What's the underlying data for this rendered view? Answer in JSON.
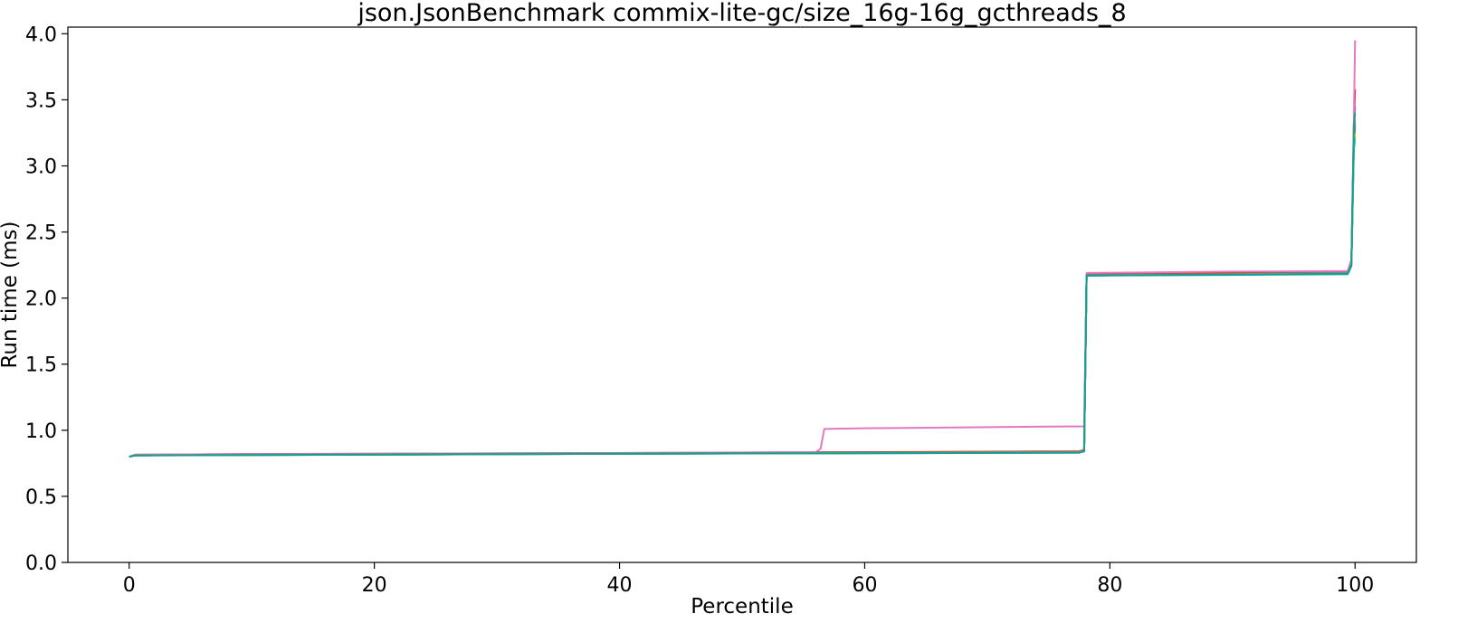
{
  "chart_data": {
    "type": "line",
    "title": "json.JsonBenchmark commix-lite-gc/size_16g-16g_gcthreads_8",
    "xlabel": "Percentile",
    "ylabel": "Run time (ms)",
    "xlim": [
      -5,
      105
    ],
    "ylim": [
      0.0,
      4.05
    ],
    "xticks": [
      0,
      20,
      40,
      60,
      80,
      100
    ],
    "xtick_labels": [
      "0",
      "20",
      "40",
      "60",
      "80",
      "100"
    ],
    "yticks": [
      0.0,
      0.5,
      1.0,
      1.5,
      2.0,
      2.5,
      3.0,
      3.5,
      4.0
    ],
    "ytick_labels": [
      "0.0",
      "0.5",
      "1.0",
      "1.5",
      "2.0",
      "2.5",
      "3.0",
      "3.5",
      "4.0"
    ],
    "grid": false,
    "legend": false,
    "series": [
      {
        "color": "#1f77b4",
        "points": [
          [
            0,
            0.8
          ],
          [
            0.5,
            0.81
          ],
          [
            10,
            0.815
          ],
          [
            40,
            0.825
          ],
          [
            77.5,
            0.835
          ],
          [
            77.9,
            0.845
          ],
          [
            78.1,
            2.17
          ],
          [
            90,
            2.18
          ],
          [
            99.4,
            2.19
          ],
          [
            99.7,
            2.26
          ],
          [
            99.9,
            3.2
          ],
          [
            100,
            3.28
          ]
        ]
      },
      {
        "color": "#ff7f0e",
        "points": [
          [
            0,
            0.8
          ],
          [
            0.5,
            0.81
          ],
          [
            10,
            0.815
          ],
          [
            40,
            0.825
          ],
          [
            77.5,
            0.84
          ],
          [
            77.9,
            0.85
          ],
          [
            78.1,
            2.18
          ],
          [
            90,
            2.185
          ],
          [
            99.4,
            2.19
          ],
          [
            99.7,
            2.27
          ],
          [
            99.9,
            3.22
          ],
          [
            100,
            3.35
          ]
        ]
      },
      {
        "color": "#2ca02c",
        "points": [
          [
            0,
            0.8
          ],
          [
            0.5,
            0.81
          ],
          [
            10,
            0.812
          ],
          [
            40,
            0.822
          ],
          [
            77.5,
            0.832
          ],
          [
            77.9,
            0.84
          ],
          [
            78.1,
            2.17
          ],
          [
            90,
            2.18
          ],
          [
            99.4,
            2.185
          ],
          [
            99.7,
            2.25
          ],
          [
            99.9,
            3.15
          ],
          [
            100,
            3.22
          ]
        ]
      },
      {
        "color": "#d62728",
        "points": [
          [
            0,
            0.8
          ],
          [
            0.5,
            0.815
          ],
          [
            10,
            0.82
          ],
          [
            40,
            0.828
          ],
          [
            77.5,
            0.84
          ],
          [
            77.9,
            0.85
          ],
          [
            78.1,
            2.18
          ],
          [
            90,
            2.19
          ],
          [
            99.4,
            2.195
          ],
          [
            99.7,
            2.28
          ],
          [
            99.9,
            3.3
          ],
          [
            100,
            3.58
          ]
        ]
      },
      {
        "color": "#9467bd",
        "points": [
          [
            0,
            0.8
          ],
          [
            0.5,
            0.81
          ],
          [
            10,
            0.815
          ],
          [
            40,
            0.825
          ],
          [
            77.5,
            0.835
          ],
          [
            77.9,
            0.845
          ],
          [
            78.1,
            2.175
          ],
          [
            90,
            2.18
          ],
          [
            99.4,
            2.19
          ],
          [
            99.7,
            2.26
          ],
          [
            99.9,
            3.25
          ],
          [
            100,
            3.45
          ]
        ]
      },
      {
        "color": "#8c564b",
        "points": [
          [
            0,
            0.8
          ],
          [
            0.5,
            0.81
          ],
          [
            10,
            0.815
          ],
          [
            40,
            0.825
          ],
          [
            77.5,
            0.835
          ],
          [
            77.9,
            0.845
          ],
          [
            78.1,
            2.175
          ],
          [
            90,
            2.18
          ],
          [
            99.4,
            2.19
          ],
          [
            99.7,
            2.26
          ],
          [
            99.9,
            3.18
          ],
          [
            100,
            3.3
          ]
        ]
      },
      {
        "color": "#e377c2",
        "points": [
          [
            0,
            0.8
          ],
          [
            0.5,
            0.815
          ],
          [
            10,
            0.82
          ],
          [
            40,
            0.828
          ],
          [
            56,
            0.835
          ],
          [
            56.4,
            0.86
          ],
          [
            56.7,
            1.01
          ],
          [
            60,
            1.015
          ],
          [
            77.9,
            1.03
          ],
          [
            78.1,
            2.19
          ],
          [
            90,
            2.2
          ],
          [
            99.4,
            2.205
          ],
          [
            99.7,
            2.29
          ],
          [
            99.9,
            3.35
          ],
          [
            100,
            3.95
          ]
        ]
      },
      {
        "color": "#7f7f7f",
        "points": [
          [
            0,
            0.8
          ],
          [
            0.5,
            0.81
          ],
          [
            10,
            0.815
          ],
          [
            40,
            0.825
          ],
          [
            77.5,
            0.835
          ],
          [
            77.9,
            0.845
          ],
          [
            78.1,
            2.175
          ],
          [
            90,
            2.18
          ],
          [
            99.4,
            2.19
          ],
          [
            99.7,
            2.26
          ],
          [
            99.9,
            3.2
          ],
          [
            100,
            3.32
          ]
        ]
      },
      {
        "color": "#bcbd22",
        "points": [
          [
            0,
            0.8
          ],
          [
            0.5,
            0.81
          ],
          [
            10,
            0.812
          ],
          [
            40,
            0.822
          ],
          [
            77.5,
            0.832
          ],
          [
            77.9,
            0.842
          ],
          [
            78.1,
            2.17
          ],
          [
            90,
            2.18
          ],
          [
            99.4,
            2.185
          ],
          [
            99.7,
            2.25
          ],
          [
            99.9,
            3.17
          ],
          [
            100,
            3.25
          ]
        ]
      },
      {
        "color": "#17becf",
        "points": [
          [
            0,
            0.8
          ],
          [
            0.5,
            0.81
          ],
          [
            10,
            0.812
          ],
          [
            40,
            0.822
          ],
          [
            77.5,
            0.83
          ],
          [
            77.9,
            0.84
          ],
          [
            78.1,
            2.17
          ],
          [
            90,
            2.175
          ],
          [
            99.4,
            2.18
          ],
          [
            99.7,
            2.24
          ],
          [
            99.9,
            3.12
          ],
          [
            100,
            3.2
          ]
        ]
      },
      {
        "color": "#1a9e8f",
        "points": [
          [
            0,
            0.8
          ],
          [
            0.5,
            0.81
          ],
          [
            10,
            0.812
          ],
          [
            40,
            0.822
          ],
          [
            77.5,
            0.83
          ],
          [
            77.9,
            0.84
          ],
          [
            78.1,
            2.17
          ],
          [
            90,
            2.178
          ],
          [
            99.4,
            2.185
          ],
          [
            99.7,
            2.25
          ],
          [
            99.9,
            3.3
          ],
          [
            100,
            3.4
          ]
        ]
      }
    ]
  }
}
